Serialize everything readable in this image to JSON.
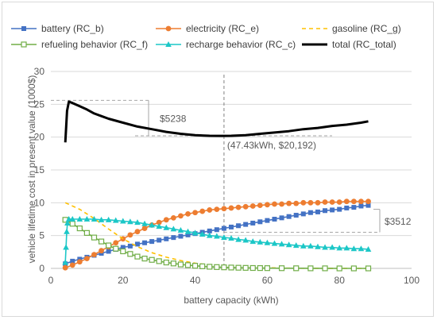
{
  "chart_data": {
    "type": "line",
    "xlabel": "battery capacity (kWh)",
    "ylabel": "vehicle lifetime cost in present value (1000$)",
    "xlim": [
      0,
      100
    ],
    "ylim": [
      0,
      30
    ],
    "x_ticks": [
      0,
      20,
      40,
      60,
      80,
      100
    ],
    "y_ticks": [
      0,
      5,
      10,
      15,
      20,
      25,
      30
    ],
    "grid": "horizontal",
    "legend_position": "top",
    "series": [
      {
        "name": "battery (RC_b)",
        "color": "#4472c4",
        "marker": "square",
        "dash": false,
        "points": [
          [
            4,
            0.7
          ],
          [
            6,
            1.1
          ],
          [
            8,
            1.4
          ],
          [
            10,
            1.7
          ],
          [
            12,
            2.0
          ],
          [
            14,
            2.3
          ],
          [
            16,
            2.6
          ],
          [
            18,
            2.9
          ],
          [
            20,
            3.2
          ],
          [
            22,
            3.4
          ],
          [
            24,
            3.7
          ],
          [
            26,
            3.9
          ],
          [
            28,
            4.1
          ],
          [
            30,
            4.3
          ],
          [
            32,
            4.5
          ],
          [
            34,
            4.7
          ],
          [
            36,
            4.9
          ],
          [
            38,
            5.1
          ],
          [
            40,
            5.3
          ],
          [
            42,
            5.5
          ],
          [
            44,
            5.7
          ],
          [
            46,
            5.9
          ],
          [
            48,
            6.1
          ],
          [
            50,
            6.3
          ],
          [
            52,
            6.5
          ],
          [
            54,
            6.7
          ],
          [
            56,
            6.9
          ],
          [
            58,
            7.1
          ],
          [
            60,
            7.3
          ],
          [
            62,
            7.5
          ],
          [
            64,
            7.7
          ],
          [
            66,
            7.9
          ],
          [
            68,
            8.1
          ],
          [
            70,
            8.3
          ],
          [
            72,
            8.5
          ],
          [
            74,
            8.6
          ],
          [
            76,
            8.8
          ],
          [
            78,
            8.9
          ],
          [
            80,
            9.0
          ],
          [
            82,
            9.2
          ],
          [
            84,
            9.3
          ],
          [
            86,
            9.5
          ],
          [
            88,
            9.6
          ]
        ]
      },
      {
        "name": "electricity (RC_e)",
        "color": "#ed7d31",
        "marker": "circle",
        "dash": false,
        "points": [
          [
            4,
            0.1
          ],
          [
            6,
            0.5
          ],
          [
            8,
            1.0
          ],
          [
            10,
            1.5
          ],
          [
            12,
            2.1
          ],
          [
            14,
            2.7
          ],
          [
            16,
            3.3
          ],
          [
            18,
            3.9
          ],
          [
            20,
            4.5
          ],
          [
            22,
            5.1
          ],
          [
            24,
            5.6
          ],
          [
            26,
            6.1
          ],
          [
            28,
            6.6
          ],
          [
            30,
            7.0
          ],
          [
            32,
            7.4
          ],
          [
            34,
            7.7
          ],
          [
            36,
            8.0
          ],
          [
            38,
            8.3
          ],
          [
            40,
            8.5
          ],
          [
            42,
            8.7
          ],
          [
            44,
            8.9
          ],
          [
            46,
            9.0
          ],
          [
            48,
            9.1
          ],
          [
            50,
            9.2
          ],
          [
            52,
            9.3
          ],
          [
            54,
            9.4
          ],
          [
            56,
            9.5
          ],
          [
            58,
            9.6
          ],
          [
            60,
            9.7
          ],
          [
            62,
            9.8
          ],
          [
            64,
            9.8
          ],
          [
            66,
            9.9
          ],
          [
            68,
            9.9
          ],
          [
            70,
            10.0
          ],
          [
            72,
            10.0
          ],
          [
            74,
            10.0
          ],
          [
            76,
            10.1
          ],
          [
            78,
            10.1
          ],
          [
            80,
            10.1
          ],
          [
            82,
            10.2
          ],
          [
            84,
            10.2
          ],
          [
            86,
            10.2
          ],
          [
            88,
            10.2
          ]
        ]
      },
      {
        "name": "gasoline (RC_g)",
        "color": "#ffc000",
        "marker": "none",
        "dash": true,
        "points": [
          [
            4,
            10.0
          ],
          [
            8,
            9.0
          ],
          [
            12,
            7.6
          ],
          [
            16,
            6.0
          ],
          [
            20,
            4.5
          ],
          [
            24,
            3.3
          ],
          [
            28,
            2.4
          ],
          [
            32,
            1.7
          ],
          [
            36,
            1.2
          ],
          [
            40,
            0.8
          ],
          [
            44,
            0.5
          ],
          [
            48,
            0.35
          ],
          [
            52,
            0.25
          ],
          [
            56,
            0.15
          ],
          [
            60,
            0.1
          ],
          [
            64,
            0.05
          ],
          [
            68,
            0.03
          ],
          [
            72,
            0.02
          ],
          [
            76,
            0.01
          ],
          [
            80,
            0.0
          ],
          [
            84,
            0.0
          ],
          [
            88,
            0.0
          ]
        ]
      },
      {
        "name": "refueling behavior (RC_f)",
        "color": "#70ad47",
        "marker": "open-square",
        "dash": false,
        "points": [
          [
            4,
            7.4
          ],
          [
            6,
            6.8
          ],
          [
            8,
            6.1
          ],
          [
            10,
            5.4
          ],
          [
            12,
            4.7
          ],
          [
            14,
            4.1
          ],
          [
            16,
            3.5
          ],
          [
            18,
            3.0
          ],
          [
            20,
            2.6
          ],
          [
            22,
            2.2
          ],
          [
            24,
            1.8
          ],
          [
            26,
            1.5
          ],
          [
            28,
            1.3
          ],
          [
            30,
            1.1
          ],
          [
            32,
            0.9
          ],
          [
            34,
            0.75
          ],
          [
            36,
            0.6
          ],
          [
            38,
            0.5
          ],
          [
            40,
            0.4
          ],
          [
            42,
            0.32
          ],
          [
            44,
            0.25
          ],
          [
            46,
            0.2
          ],
          [
            48,
            0.16
          ],
          [
            50,
            0.13
          ],
          [
            52,
            0.1
          ],
          [
            54,
            0.08
          ],
          [
            56,
            0.06
          ],
          [
            58,
            0.05
          ],
          [
            60,
            0.04
          ],
          [
            64,
            0.03
          ],
          [
            68,
            0.02
          ],
          [
            72,
            0.01
          ],
          [
            76,
            0.01
          ],
          [
            80,
            0.0
          ],
          [
            84,
            0.0
          ],
          [
            88,
            0.0
          ]
        ]
      },
      {
        "name": "recharge behavior (RC_c)",
        "color": "#1cc7c7",
        "marker": "triangle",
        "dash": false,
        "points": [
          [
            4,
            0.9
          ],
          [
            4.2,
            3.2
          ],
          [
            4.4,
            5.6
          ],
          [
            4.6,
            6.9
          ],
          [
            5,
            7.5
          ],
          [
            6,
            7.5
          ],
          [
            8,
            7.5
          ],
          [
            10,
            7.5
          ],
          [
            12,
            7.5
          ],
          [
            14,
            7.4
          ],
          [
            16,
            7.4
          ],
          [
            18,
            7.3
          ],
          [
            20,
            7.2
          ],
          [
            22,
            7.1
          ],
          [
            24,
            7.0
          ],
          [
            26,
            6.8
          ],
          [
            28,
            6.6
          ],
          [
            30,
            6.4
          ],
          [
            32,
            6.2
          ],
          [
            34,
            6.0
          ],
          [
            36,
            5.8
          ],
          [
            38,
            5.6
          ],
          [
            40,
            5.4
          ],
          [
            42,
            5.2
          ],
          [
            44,
            5.0
          ],
          [
            46,
            4.9
          ],
          [
            48,
            4.7
          ],
          [
            50,
            4.6
          ],
          [
            52,
            4.4
          ],
          [
            54,
            4.3
          ],
          [
            56,
            4.1
          ],
          [
            58,
            4.0
          ],
          [
            60,
            3.9
          ],
          [
            62,
            3.8
          ],
          [
            64,
            3.7
          ],
          [
            66,
            3.6
          ],
          [
            68,
            3.5
          ],
          [
            70,
            3.4
          ],
          [
            72,
            3.4
          ],
          [
            74,
            3.3
          ],
          [
            76,
            3.2
          ],
          [
            78,
            3.2
          ],
          [
            80,
            3.1
          ],
          [
            82,
            3.1
          ],
          [
            84,
            3.0
          ],
          [
            86,
            3.0
          ],
          [
            88,
            2.9
          ]
        ]
      },
      {
        "name": "total (RC_total)",
        "color": "#000000",
        "marker": "none",
        "dash": false,
        "thick": true,
        "points": [
          [
            4,
            19.2
          ],
          [
            4.5,
            24.0
          ],
          [
            5,
            25.4
          ],
          [
            6,
            25.2
          ],
          [
            8,
            24.7
          ],
          [
            10,
            24.2
          ],
          [
            12,
            23.6
          ],
          [
            16,
            22.8
          ],
          [
            20,
            22.2
          ],
          [
            24,
            21.6
          ],
          [
            28,
            21.2
          ],
          [
            32,
            20.8
          ],
          [
            36,
            20.5
          ],
          [
            40,
            20.3
          ],
          [
            44,
            20.2
          ],
          [
            47.43,
            20.192
          ],
          [
            50,
            20.2
          ],
          [
            54,
            20.3
          ],
          [
            58,
            20.5
          ],
          [
            62,
            20.7
          ],
          [
            66,
            20.9
          ],
          [
            70,
            21.2
          ],
          [
            74,
            21.4
          ],
          [
            78,
            21.7
          ],
          [
            82,
            21.9
          ],
          [
            86,
            22.2
          ],
          [
            88,
            22.4
          ]
        ]
      }
    ],
    "annotations": {
      "vline_x": 48,
      "min_label": "(47.43kWh, $20,192)",
      "total_bracket": {
        "label": "$5238",
        "from": 25.6,
        "to": 20.2
      },
      "battery_bracket": {
        "label": "$3512",
        "from": 9.0,
        "to": 5.5
      }
    }
  }
}
